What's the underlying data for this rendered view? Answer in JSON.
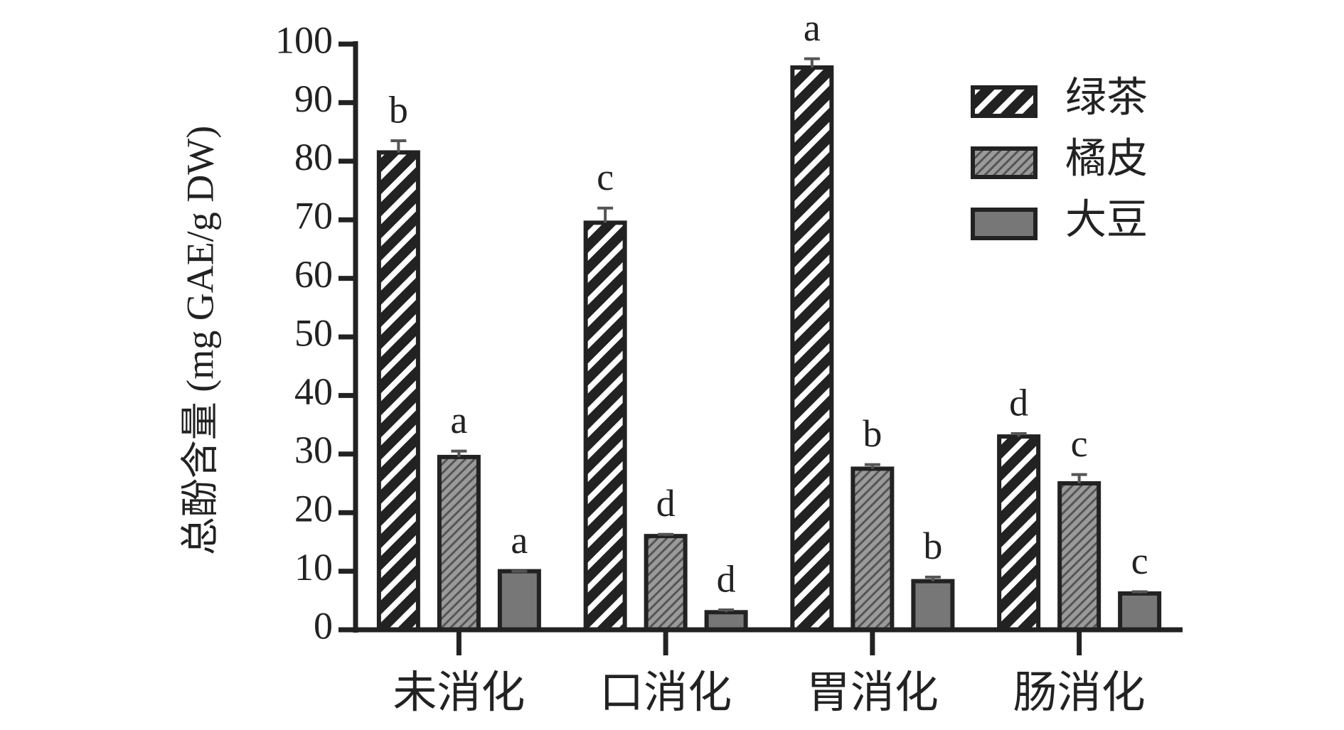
{
  "chart_data": {
    "type": "bar",
    "y_label": "总酚含量 (mg GAE/g DW)",
    "categories": [
      "未消化",
      "口消化",
      "胃消化",
      "肠消化"
    ],
    "series": [
      {
        "name": "绿茶",
        "color": "#222222",
        "pattern": "white-stripes",
        "values": [
          81.5,
          69.5,
          96,
          33
        ],
        "errors": [
          2,
          2.5,
          1.5,
          0.5
        ],
        "significance": [
          "b",
          "c",
          "a",
          "d"
        ]
      },
      {
        "name": "橘皮",
        "color": "#8c8c8c",
        "pattern": "dark-hatch",
        "values": [
          29.5,
          16,
          27.5,
          25
        ],
        "errors": [
          1,
          0.3,
          0.7,
          1.5
        ],
        "significance": [
          "a",
          "d",
          "b",
          "c"
        ]
      },
      {
        "name": "大豆",
        "color": "#777777",
        "pattern": "solid",
        "values": [
          10,
          3,
          8.3,
          6.2
        ],
        "errors": [
          0,
          0.4,
          0.7,
          0.3
        ],
        "significance": [
          "a",
          "d",
          "b",
          "c"
        ]
      }
    ],
    "ylim": [
      0,
      100
    ],
    "yticks": [
      0,
      10,
      20,
      30,
      40,
      50,
      60,
      70,
      80,
      90,
      100
    ],
    "legend": "upper-right"
  }
}
